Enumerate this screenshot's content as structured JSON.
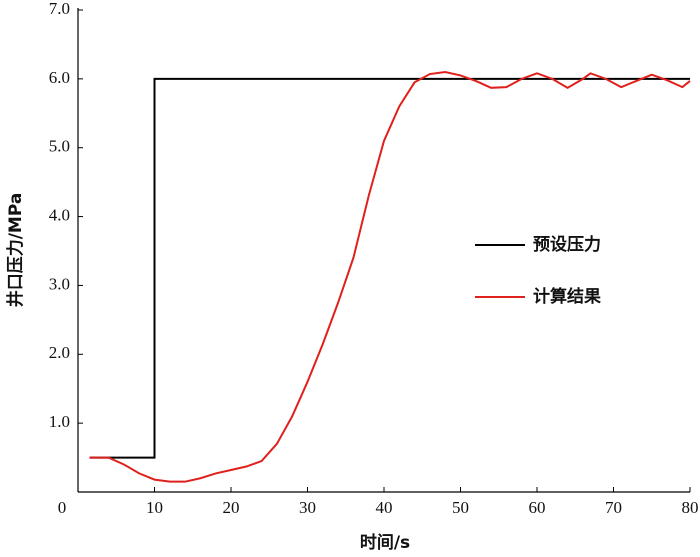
{
  "chart_data": {
    "type": "line",
    "x_label": "时间/s",
    "y_label": "井口压力/MPa",
    "xlim": [
      0,
      80
    ],
    "ylim": [
      0,
      7
    ],
    "xticks": [
      0,
      10,
      20,
      30,
      40,
      50,
      60,
      70,
      80
    ],
    "yticks": [
      {
        "value": 1,
        "label": "1.0"
      },
      {
        "value": 2,
        "label": "2.0"
      },
      {
        "value": 3,
        "label": "3.0"
      },
      {
        "value": 4,
        "label": "4.0"
      },
      {
        "value": 5,
        "label": "5.0"
      },
      {
        "value": 6,
        "label": "6.0"
      },
      {
        "value": 7,
        "label": "7.0"
      }
    ],
    "legend": "center right",
    "series": [
      {
        "name": "预设压力",
        "color": "#000000",
        "x": [
          1.5,
          10,
          10,
          80
        ],
        "values": [
          0.5,
          0.5,
          6,
          6
        ]
      },
      {
        "name": "计算结果",
        "color": "#e0201b",
        "x": [
          1.5,
          4,
          6,
          8,
          10,
          12,
          14,
          16,
          18,
          20,
          22,
          24,
          26,
          28,
          30,
          32,
          34,
          36,
          38,
          40,
          42,
          44,
          46,
          48,
          50,
          52,
          54,
          56,
          58,
          60,
          62,
          64,
          66,
          67,
          69,
          71,
          73,
          75,
          77,
          79,
          80
        ],
        "values": [
          0.5,
          0.5,
          0.4,
          0.27,
          0.18,
          0.15,
          0.15,
          0.2,
          0.27,
          0.32,
          0.37,
          0.45,
          0.7,
          1.1,
          1.6,
          2.15,
          2.75,
          3.4,
          4.3,
          5.1,
          5.6,
          5.95,
          6.07,
          6.1,
          6.05,
          5.97,
          5.87,
          5.88,
          6.0,
          6.08,
          6.0,
          5.87,
          6.0,
          6.08,
          6.0,
          5.88,
          5.97,
          6.06,
          5.98,
          5.88,
          5.97
        ]
      }
    ]
  }
}
